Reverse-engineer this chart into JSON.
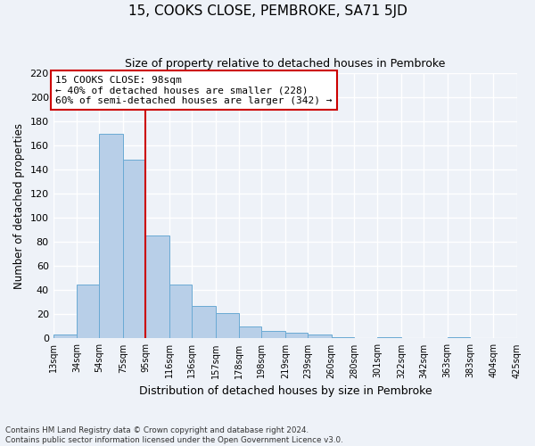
{
  "title": "15, COOKS CLOSE, PEMBROKE, SA71 5JD",
  "subtitle": "Size of property relative to detached houses in Pembroke",
  "xlabel": "Distribution of detached houses by size in Pembroke",
  "ylabel": "Number of detached properties",
  "bin_labels": [
    "13sqm",
    "34sqm",
    "54sqm",
    "75sqm",
    "95sqm",
    "116sqm",
    "136sqm",
    "157sqm",
    "178sqm",
    "198sqm",
    "219sqm",
    "239sqm",
    "260sqm",
    "280sqm",
    "301sqm",
    "322sqm",
    "342sqm",
    "363sqm",
    "383sqm",
    "404sqm",
    "425sqm"
  ],
  "bar_heights": [
    3,
    45,
    170,
    148,
    85,
    45,
    27,
    21,
    10,
    6,
    5,
    3,
    1,
    0,
    1,
    0,
    0,
    1,
    0,
    0,
    1
  ],
  "bin_edges": [
    13,
    34,
    54,
    75,
    95,
    116,
    136,
    157,
    178,
    198,
    219,
    239,
    260,
    280,
    301,
    322,
    342,
    363,
    383,
    404,
    425
  ],
  "bar_color": "#b8cfe8",
  "bar_edge_color": "#6aaad4",
  "vline_x": 95,
  "vline_color": "#cc0000",
  "annotation_line1": "15 COOKS CLOSE: 98sqm",
  "annotation_line2": "← 40% of detached houses are smaller (228)",
  "annotation_line3": "60% of semi-detached houses are larger (342) →",
  "annotation_box_color": "#ffffff",
  "annotation_box_edge": "#cc0000",
  "ylim": [
    0,
    220
  ],
  "yticks": [
    0,
    20,
    40,
    60,
    80,
    100,
    120,
    140,
    160,
    180,
    200,
    220
  ],
  "footer": "Contains HM Land Registry data © Crown copyright and database right 2024.\nContains public sector information licensed under the Open Government Licence v3.0.",
  "bg_color": "#eef2f8",
  "grid_color": "#ffffff",
  "title_fontsize": 11,
  "subtitle_fontsize": 9
}
